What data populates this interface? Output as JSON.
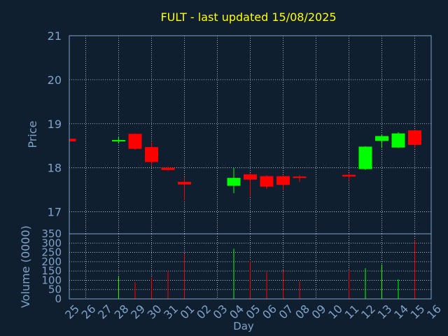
{
  "chart_data": {
    "type": "candlestick",
    "title": "FULT - last updated 15/08/2025",
    "colors": {
      "background": "#0f1f30",
      "text": "#7fa3c8",
      "title": "#ffff00",
      "axis": "#7fa3c8",
      "up": "#00ff00",
      "down": "#ff0000"
    },
    "price_panel": {
      "ylabel": "Price",
      "ylim": [
        16.5,
        21
      ],
      "yticks": [
        "17",
        "18",
        "19",
        "20",
        "21"
      ],
      "grid": true
    },
    "volume_panel": {
      "ylabel": "Volume (0000)",
      "ylim": [
        0,
        350
      ],
      "yticks": [
        "0",
        "50",
        "100",
        "150",
        "200",
        "250",
        "300",
        "350"
      ],
      "grid": true
    },
    "xlabel": "Day",
    "x_ticks": [
      "25",
      "26",
      "27",
      "28",
      "29",
      "30",
      "31",
      "01",
      "02",
      "03",
      "04",
      "05",
      "06",
      "07",
      "08",
      "09",
      "10",
      "11",
      "12",
      "13",
      "14",
      "15",
      "16"
    ],
    "candles": [
      {
        "day": "25",
        "open": 18.66,
        "high": 18.67,
        "low": 18.59,
        "close": 18.6,
        "volume": 0
      },
      {
        "day": "28",
        "open": 18.6,
        "high": 18.7,
        "low": 18.55,
        "close": 18.63,
        "volume": 120
      },
      {
        "day": "29",
        "open": 18.77,
        "high": 18.78,
        "low": 18.41,
        "close": 18.43,
        "volume": 90
      },
      {
        "day": "30",
        "open": 18.47,
        "high": 18.58,
        "low": 18.05,
        "close": 18.13,
        "volume": 115
      },
      {
        "day": "31",
        "open": 18.0,
        "high": 18.02,
        "low": 17.93,
        "close": 17.95,
        "volume": 150
      },
      {
        "day": "01",
        "open": 17.68,
        "high": 17.78,
        "low": 17.26,
        "close": 17.62,
        "volume": 245
      },
      {
        "day": "04",
        "open": 17.59,
        "high": 18.0,
        "low": 17.42,
        "close": 17.77,
        "volume": 270
      },
      {
        "day": "05",
        "open": 17.85,
        "high": 17.88,
        "low": 17.34,
        "close": 17.73,
        "volume": 205
      },
      {
        "day": "06",
        "open": 17.81,
        "high": 17.83,
        "low": 17.52,
        "close": 17.57,
        "volume": 145
      },
      {
        "day": "07",
        "open": 17.81,
        "high": 17.82,
        "low": 17.49,
        "close": 17.61,
        "volume": 155
      },
      {
        "day": "08",
        "open": 17.8,
        "high": 17.83,
        "low": 17.68,
        "close": 17.77,
        "volume": 95
      },
      {
        "day": "11",
        "open": 17.84,
        "high": 17.88,
        "low": 17.7,
        "close": 17.8,
        "volume": 155
      },
      {
        "day": "12",
        "open": 17.97,
        "high": 18.49,
        "low": 17.95,
        "close": 18.48,
        "volume": 165
      },
      {
        "day": "13",
        "open": 18.61,
        "high": 18.75,
        "low": 18.45,
        "close": 18.72,
        "volume": 185
      },
      {
        "day": "14",
        "open": 18.46,
        "high": 18.81,
        "low": 18.45,
        "close": 18.78,
        "volume": 105
      },
      {
        "day": "15",
        "open": 18.85,
        "high": 18.87,
        "low": 18.46,
        "close": 18.52,
        "volume": 315
      }
    ]
  }
}
